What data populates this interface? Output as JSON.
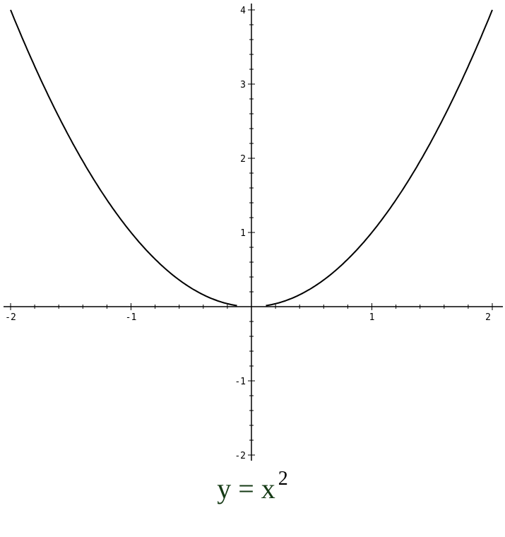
{
  "chart_data": {
    "type": "line",
    "function": "y = x^2",
    "title": "",
    "caption_base": "y = x",
    "caption_exponent": "2",
    "xlabel": "",
    "ylabel": "",
    "xlim": [
      -2,
      2
    ],
    "ylim": [
      -2,
      4
    ],
    "x_ticks": [
      {
        "v": -2,
        "label": "-2"
      },
      {
        "v": -1,
        "label": "-1"
      },
      {
        "v": 1,
        "label": "1"
      },
      {
        "v": 2,
        "label": "2"
      }
    ],
    "y_ticks": [
      {
        "v": 4,
        "label": "4"
      },
      {
        "v": 3,
        "label": "3"
      },
      {
        "v": 2,
        "label": "2"
      },
      {
        "v": 1,
        "label": "1"
      },
      {
        "v": -1,
        "label": "-1"
      },
      {
        "v": -2,
        "label": "-2"
      }
    ],
    "minor_tick_step": 0.2,
    "series": [
      {
        "x_range": [
          -2,
          -0.12
        ]
      },
      {
        "x_range": [
          0.12,
          2
        ]
      }
    ],
    "grid": false,
    "line_color": "#000000"
  }
}
